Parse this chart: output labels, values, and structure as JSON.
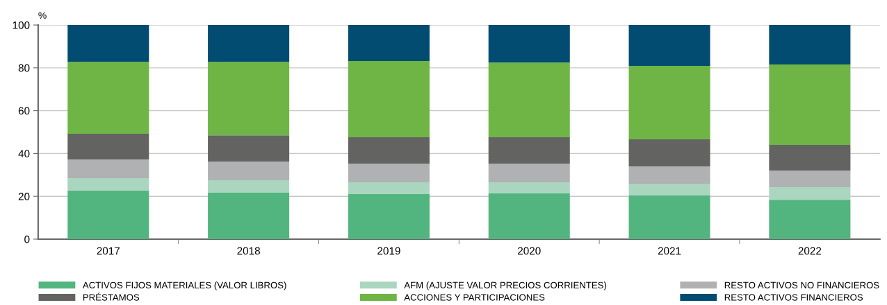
{
  "chart_data": {
    "type": "bar",
    "stacked": true,
    "ylabel": "%",
    "categories": [
      "2017",
      "2018",
      "2019",
      "2020",
      "2021",
      "2022"
    ],
    "series": [
      {
        "name": "ACTIVOS FIJOS MATERIALES (VALOR LIBROS)",
        "color": "#52b57f",
        "values": [
          22.7,
          21.7,
          21.0,
          21.4,
          20.4,
          18.4
        ]
      },
      {
        "name": "AFM (AJUSTE VALOR PRECIOS CORRIENTES)",
        "color": "#aad6c0",
        "values": [
          5.8,
          5.8,
          5.5,
          5.1,
          5.5,
          5.9
        ]
      },
      {
        "name": "RESTO ACTIVOS NO FINANCIEROS",
        "color": "#b0b1b2",
        "values": [
          8.7,
          8.7,
          8.8,
          8.8,
          8.1,
          7.7
        ]
      },
      {
        "name": "PRÉSTAMOS",
        "color": "#636362",
        "values": [
          12.0,
          12.3,
          12.3,
          12.3,
          12.6,
          12.0
        ]
      },
      {
        "name": "ACCIONES Y PARTICIPACIONES",
        "color": "#6eb545",
        "values": [
          33.6,
          34.3,
          35.6,
          34.9,
          34.3,
          37.6
        ]
      },
      {
        "name": "RESTO ACTIVOS FINANCIEROS",
        "color": "#024b71",
        "values": [
          17.2,
          17.2,
          16.8,
          17.5,
          19.1,
          18.4
        ]
      }
    ],
    "ylim": [
      0,
      100
    ],
    "yticks": [
      0,
      20,
      40,
      60,
      80,
      100
    ],
    "grid": "y",
    "legend": "bottom"
  }
}
